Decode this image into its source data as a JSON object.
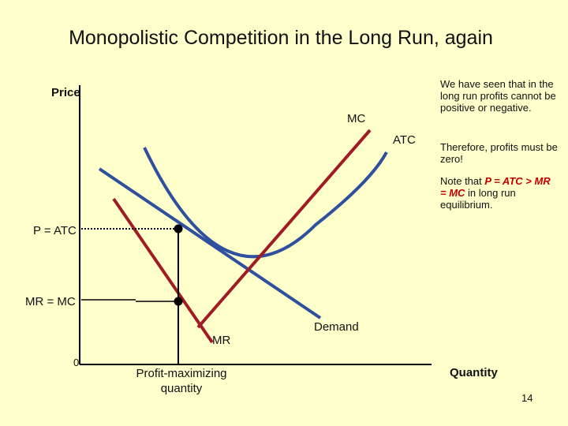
{
  "slide": {
    "title": "Monopolistic Competition in the Long Run, again",
    "page_number": "14"
  },
  "axes": {
    "y_label": "Price",
    "x_label": "Quantity",
    "origin_label": "0"
  },
  "curves": {
    "mc_label": "MC",
    "atc_label": "ATC",
    "mr_label": "MR",
    "demand_label": "Demand"
  },
  "levels": {
    "p_atc_label": "P = ATC",
    "mr_mc_label": "MR = MC",
    "quantity_label_line1": "Profit-maximizing",
    "quantity_label_line2": "quantity"
  },
  "notes": {
    "note1": "We have seen that in the long run profits cannot be positive or negative.",
    "note2": "Therefore, profits must be zero!",
    "note3_prefix": "Note that ",
    "note3_em1": "P = ATC",
    "note3_gt": " > ",
    "note3_em2": "MR = MC",
    "note3_suffix": " in long run equilibrium."
  },
  "colors": {
    "mc_and_mr": "#a01c24",
    "atc_and_demand": "#2f4f9f",
    "background": "#ffffcc"
  }
}
